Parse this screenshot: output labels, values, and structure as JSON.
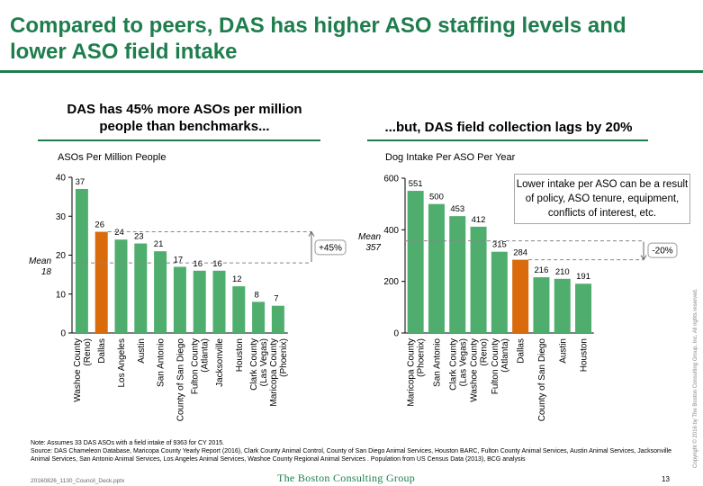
{
  "header": {
    "title_line1": "Compared to peers, DAS has higher ASO staffing levels and",
    "title_line2": "lower ASO field intake"
  },
  "left": {
    "subtitle_line1": "DAS has 45% more ASOs per million",
    "subtitle_line2": "people than benchmarks...",
    "mean_label": "Mean",
    "mean_value": "18",
    "diff_label": "+45%"
  },
  "right": {
    "subtitle": "...but, DAS field collection lags by 20%",
    "mean_label": "Mean",
    "mean_value": "357",
    "diff_label": "-20%",
    "callout": "Lower intake per ASO can be a result of policy, ASO tenure, equipment, conflicts of interest, etc."
  },
  "colors": {
    "green": "#4fae6e",
    "orange": "#d96b0c",
    "brand": "#1e7d4d"
  },
  "chart_data": [
    {
      "type": "bar",
      "title": "ASOs Per Million People",
      "categories": [
        [
          "Washoe County",
          "(Reno)"
        ],
        [
          "Dallas"
        ],
        [
          "Los Angeles"
        ],
        [
          "Austin"
        ],
        [
          "San Antonio"
        ],
        [
          "County of San Diego"
        ],
        [
          "Fulton County",
          "(Atlanta)"
        ],
        [
          "Jacksonville"
        ],
        [
          "Houston"
        ],
        [
          "Clark County",
          "(Las Vegas)"
        ],
        [
          "Maricopa County",
          "(Phoenix)"
        ]
      ],
      "values": [
        37,
        26,
        24,
        23,
        21,
        17,
        16,
        16,
        12,
        8,
        7
      ],
      "highlight_index": 1,
      "mean": 18,
      "ylim": [
        0,
        40
      ],
      "yticks": [
        0,
        10,
        20,
        30,
        40
      ],
      "grid": false
    },
    {
      "type": "bar",
      "title": "Dog Intake Per ASO Per Year",
      "categories": [
        [
          "Maricopa County",
          "(Phoenix)"
        ],
        [
          "San Antonio"
        ],
        [
          "Clark County",
          "(Las Vegas)"
        ],
        [
          "Washoe County",
          "(Reno)"
        ],
        [
          "Fulton County",
          "(Atlanta)"
        ],
        [
          "Dallas"
        ],
        [
          "County of San Diego"
        ],
        [
          "Austin"
        ],
        [
          "Houston"
        ]
      ],
      "values": [
        551,
        500,
        453,
        412,
        315,
        284,
        216,
        210,
        191
      ],
      "highlight_index": 5,
      "mean": 357,
      "ylim": [
        0,
        600
      ],
      "yticks": [
        0,
        200,
        400,
        600
      ],
      "grid": false
    }
  ],
  "footer": {
    "note1": "Note: Assumes 33 DAS ASOs with a field intake of 9363 for CY 2015.",
    "note2": "Source: DAS Chameleon Database, Maricopa County Yearly Report (2016), Clark County Animal Control, County of San Diego Animal Services, Houston BARC, Fulton County Animal Services, Austin Animal Services, Jacksonville Animal Services, San Antonio Animal Services, Los Angeles Animal Services, Washoe County Regional Animal Services . Population from US Census Data (2013), BCG analysis",
    "file": "20160826_1130_Council_Deck.pptx",
    "company": "The Boston Consulting Group",
    "page": "13",
    "copyright": "Copyright © 2016 by The Boston Consulting Group, Inc. All rights reserved."
  }
}
